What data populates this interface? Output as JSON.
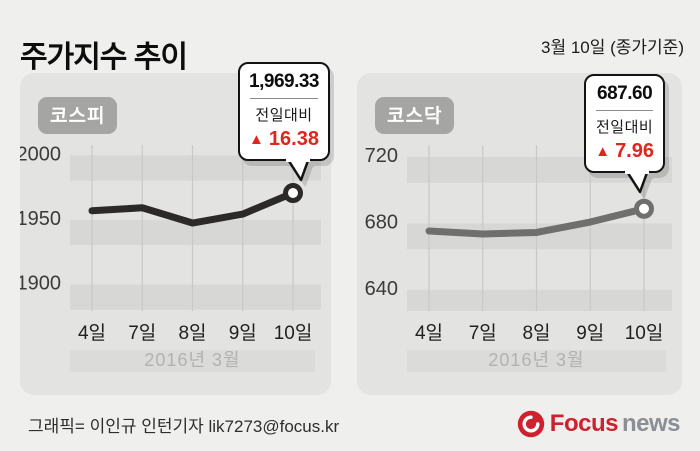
{
  "header": {
    "title": "주가지수 추이",
    "date_note": "3월 10일 (종가기준)"
  },
  "chart_data": [
    {
      "type": "line",
      "title": "코스피",
      "categories": [
        "4일",
        "7일",
        "8일",
        "9일",
        "10일"
      ],
      "values": [
        1955.6,
        1957.9,
        1946.1,
        1953.0,
        1969.33
      ],
      "y_ticks": [
        2000,
        1950,
        1900
      ],
      "ylim": [
        1878,
        2006.5
      ],
      "xlabel_band": "2016년 3월",
      "line_color": "#2b2a28",
      "grid": true,
      "legend": "none",
      "annotation": {
        "value": "1,969.33",
        "label": "전일대비",
        "arrow": "▲",
        "change": "16.38",
        "direction": "up",
        "change_color": "#e0251c"
      }
    },
    {
      "type": "line",
      "title": "코스닥",
      "categories": [
        "4일",
        "7일",
        "8일",
        "9일",
        "10일"
      ],
      "values": [
        674.2,
        672.4,
        673.3,
        679.6,
        687.6
      ],
      "y_ticks": [
        720,
        680,
        640
      ],
      "ylim": [
        626,
        726
      ],
      "xlabel_band": "2016년 3월",
      "line_color": "#6f6f6e",
      "grid": true,
      "legend": "none",
      "annotation": {
        "value": "687.60",
        "label": "전일대비",
        "arrow": "▲",
        "change": "7.96",
        "direction": "up",
        "change_color": "#e0251c"
      }
    }
  ],
  "footer": {
    "credit": "그래픽= 이인규 인턴기자 lik7273@focus.kr",
    "logo": {
      "icon": "focus-swirl-icon",
      "brand": "Focus",
      "suffix": "news",
      "brand_color": "#cf2030",
      "suffix_color": "#898f95"
    }
  }
}
